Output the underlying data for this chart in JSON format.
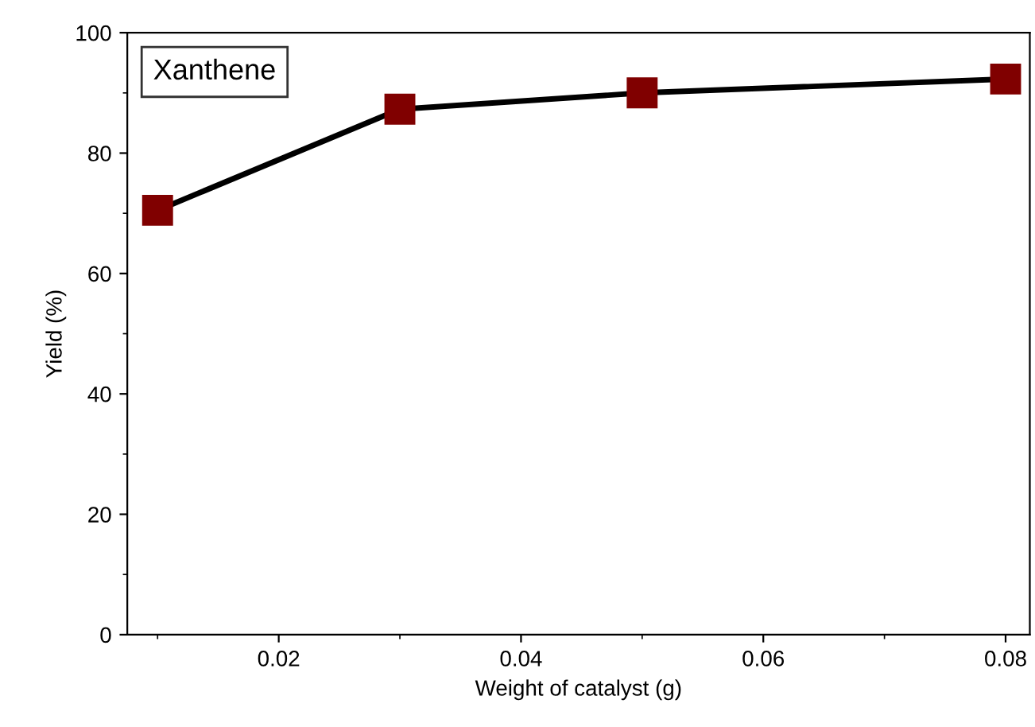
{
  "chart_data": {
    "type": "line",
    "xlabel": "Weight of catalyst (g)",
    "ylabel": "Yield (%)",
    "x": [
      0.01,
      0.03,
      0.05,
      0.08
    ],
    "series": [
      {
        "name": "Xanthene",
        "color": "#800000",
        "values": [
          70.5,
          87.3,
          90,
          92.3
        ]
      }
    ],
    "xlim": [
      0.0075,
      0.082
    ],
    "ylim": [
      0,
      100
    ],
    "xticks": [
      0.02,
      0.04,
      0.06,
      0.08
    ],
    "yticks": [
      0,
      20,
      40,
      60,
      80,
      100
    ],
    "marker": "square",
    "line_style": "solid",
    "legend": "top left",
    "grid": false
  }
}
